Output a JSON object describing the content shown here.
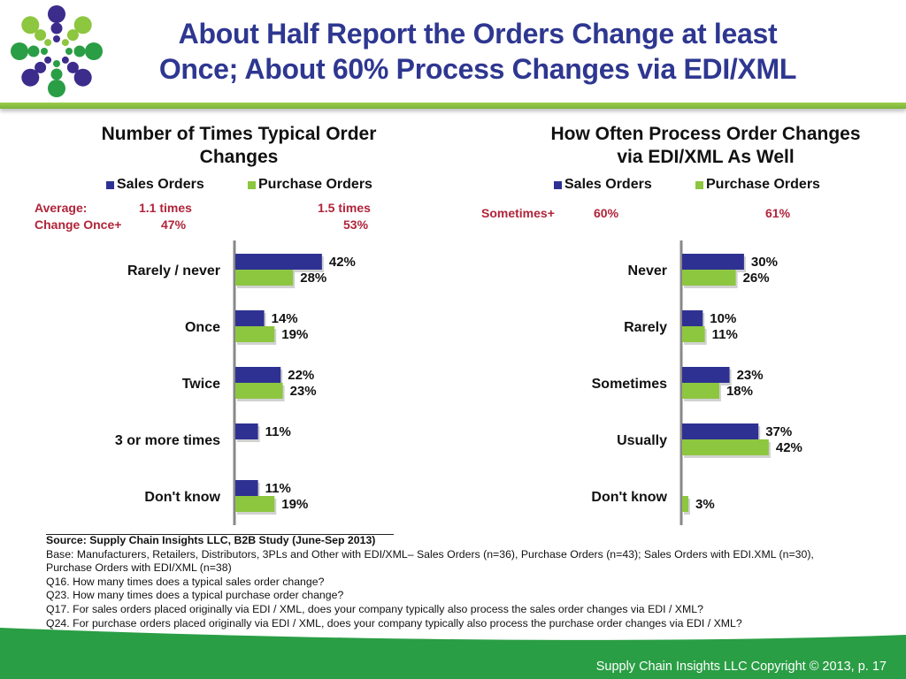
{
  "slide": {
    "title_line1": "About Half Report the Orders Change at least",
    "title_line2": "Once;  About 60% Process Changes via EDI/XML",
    "copyright": "Supply Chain Insights LLC Copyright © 2013, p. 17"
  },
  "colors": {
    "title_blue": "#2e3790",
    "sales_orders": "#2e3192",
    "purchase_orders": "#8dc63f",
    "stat_red": "#b0243a",
    "accent_green": "#2a9e45"
  },
  "logo": {
    "icon": "dot-burst-logo-icon"
  },
  "chart_data": [
    {
      "type": "bar",
      "orientation": "horizontal",
      "title_line1": "Number of Times Typical Order",
      "title_line2": "Changes",
      "legend": [
        "Sales Orders",
        "Purchase Orders"
      ],
      "legend_position": "top",
      "stats": {
        "average_label": "Average:",
        "average_sales": "1.1 times",
        "average_purchase": "1.5 times",
        "once_label": "Change Once+",
        "once_sales": "47%",
        "once_purchase": "53%"
      },
      "categories": [
        "Rarely / never",
        "Once",
        "Twice",
        "3 or more times",
        "Don't know"
      ],
      "series": [
        {
          "name": "Sales Orders",
          "values": [
            42,
            14,
            22,
            11,
            11
          ]
        },
        {
          "name": "Purchase Orders",
          "values": [
            28,
            19,
            23,
            null,
            19
          ]
        }
      ],
      "value_suffix": "%",
      "xlim": [
        0,
        100
      ],
      "grid": false
    },
    {
      "type": "bar",
      "orientation": "horizontal",
      "title_line1": "How Often Process Order Changes",
      "title_line2": "via EDI/XML As Well",
      "legend": [
        "Sales Orders",
        "Purchase Orders"
      ],
      "legend_position": "top",
      "stats": {
        "sometimes_label": "Sometimes+",
        "sometimes_sales": "60%",
        "sometimes_purchase": "61%"
      },
      "categories": [
        "Never",
        "Rarely",
        "Sometimes",
        "Usually",
        "Don't know"
      ],
      "series": [
        {
          "name": "Sales Orders",
          "values": [
            30,
            10,
            23,
            37,
            null
          ]
        },
        {
          "name": "Purchase Orders",
          "values": [
            26,
            11,
            18,
            42,
            3
          ]
        }
      ],
      "value_suffix": "%",
      "xlim": [
        0,
        100
      ],
      "grid": false
    }
  ],
  "footnotes": {
    "source": "Source:  Supply Chain Insights LLC, B2B Study (June-Sep 2013)",
    "base_line1": "Base:  Manufacturers, Retailers, Distributors, 3PLs and Other with EDI/XML– Sales Orders (n=36), Purchase Orders (n=43); Sales Orders with EDI.XML (n=30),",
    "base_line2": "Purchase Orders with EDI/XML (n=38)",
    "q16": "Q16. How many times does a typical sales order change?",
    "q23": "Q23. How many times does a typical purchase order change?",
    "q17": "Q17. For sales orders placed originally via EDI / XML, does your company typically also process the sales order changes via EDI / XML?",
    "q24": "Q24. For purchase orders placed originally via EDI / XML, does your company typically also process the purchase order changes via EDI / XML?"
  }
}
